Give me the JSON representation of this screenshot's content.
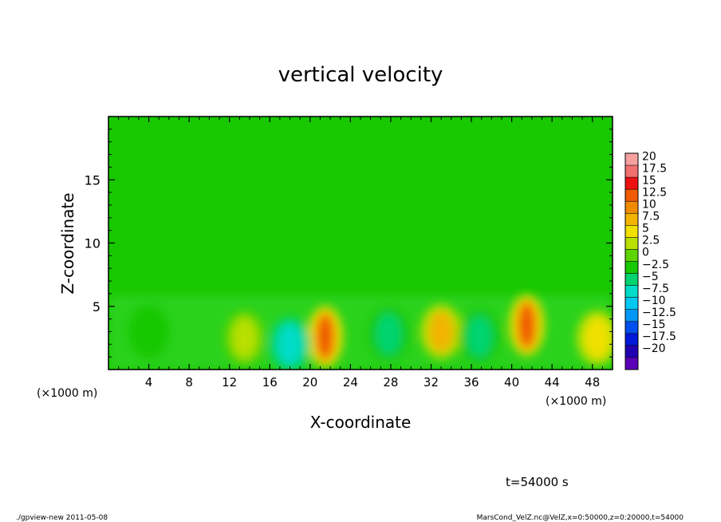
{
  "chart_data": {
    "type": "heatmap",
    "title": "vertical velocity",
    "xlabel": "X-coordinate",
    "ylabel": "Z-coordinate",
    "x_unit_left": "(×1000 m)",
    "x_unit_right": "(×1000 m)",
    "xlim": [
      0,
      50
    ],
    "ylim": [
      0,
      20
    ],
    "x_ticks": [
      4,
      8,
      12,
      16,
      20,
      24,
      28,
      32,
      36,
      40,
      44,
      48
    ],
    "y_ticks": [
      5,
      10,
      15
    ],
    "colorbar": {
      "levels": [
        "20",
        "17.5",
        "15",
        "12.5",
        "10",
        "7.5",
        "5",
        "2.5",
        "0",
        "−2.5",
        "−5",
        "−7.5",
        "−10",
        "−12.5",
        "−15",
        "−17.5",
        "−20"
      ],
      "colors": [
        "#f7a0a0",
        "#f27070",
        "#ee1010",
        "#f05a00",
        "#f28a00",
        "#f2b400",
        "#f0e000",
        "#b8e000",
        "#5ed400",
        "#18c800",
        "#00d470",
        "#00dcc8",
        "#00c8f0",
        "#0098f8",
        "#0050f0",
        "#0018d8",
        "#2000b0",
        "#5a00b8"
      ]
    },
    "features": [
      {
        "x": 21.5,
        "z": 2.6,
        "value": 12.5
      },
      {
        "x": 41.5,
        "z": 3.5,
        "value": 12.5
      },
      {
        "x": 33.0,
        "z": 3.0,
        "value": 7.5
      },
      {
        "x": 18.0,
        "z": 2.0,
        "value": -7.5
      },
      {
        "x": 36.8,
        "z": 2.6,
        "value": -5
      },
      {
        "x": 27.8,
        "z": 2.8,
        "value": -5
      },
      {
        "x": 4.0,
        "z": 3.0,
        "value": -2.5
      },
      {
        "x": 48.5,
        "z": 2.5,
        "value": 5
      },
      {
        "x": 13.5,
        "z": 2.5,
        "value": 2.5
      }
    ]
  },
  "time_label": "t=54000 s",
  "footer_left": "./gpview-new  2011-05-08",
  "footer_right": "MarsCond_VelZ.nc@VelZ,x=0:50000,z=0:20000,t=54000"
}
